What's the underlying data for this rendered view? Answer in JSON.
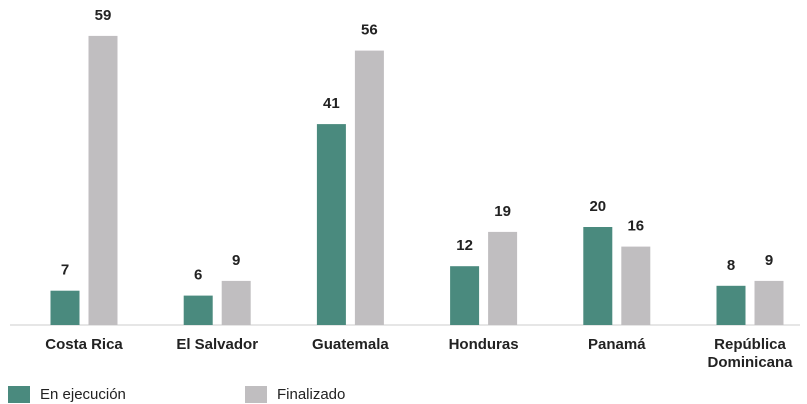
{
  "chart_data": {
    "type": "bar",
    "categories": [
      "Costa Rica",
      "El Salvador",
      "Guatemala",
      "Honduras",
      "Panamá",
      "República Dominicana"
    ],
    "series": [
      {
        "name": "En ejecución",
        "color": "#4a8a7e",
        "values": [
          7,
          6,
          41,
          12,
          20,
          8
        ]
      },
      {
        "name": "Finalizado",
        "color": "#c0bec0",
        "values": [
          59,
          9,
          56,
          19,
          16,
          9
        ]
      }
    ],
    "ylim": [
      0,
      60
    ]
  }
}
